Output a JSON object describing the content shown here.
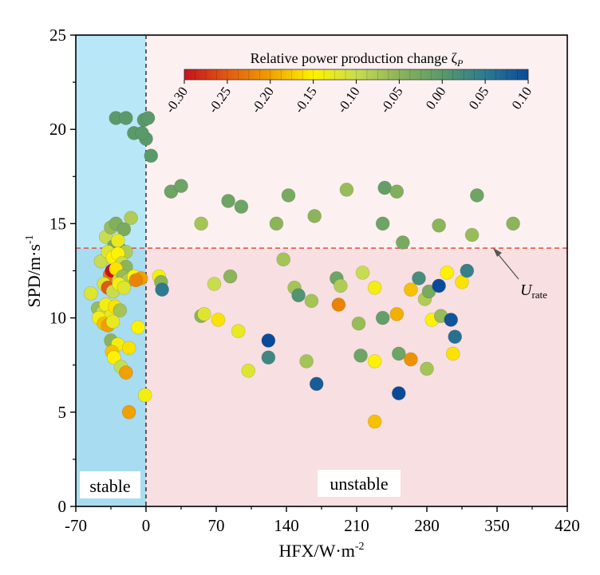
{
  "chart_data": {
    "type": "scatter",
    "xlabel": "HFX/W·m",
    "xlabel_sup": "-2",
    "ylabel": "SPD/m·s",
    "ylabel_sup": "-1",
    "xlim": [
      -70,
      420
    ],
    "ylim": [
      0,
      25
    ],
    "x_ticks": [
      "-70",
      "0",
      "70",
      "140",
      "210",
      "280",
      "350",
      "420"
    ],
    "x_tick_values": [
      -70,
      0,
      70,
      140,
      210,
      280,
      350,
      420
    ],
    "y_ticks": [
      "0",
      "5",
      "10",
      "15",
      "20",
      "25"
    ],
    "y_tick_values": [
      0,
      5,
      10,
      15,
      20,
      25
    ],
    "regions": {
      "stable_label": "stable",
      "unstable_label": "unstable",
      "divider_x": 0,
      "colors": {
        "stable_low": "#a8dcf0",
        "stable_high": "#b8e8f8",
        "unstable_low": "#f8dfe2",
        "unstable_high": "#fdf0f1"
      }
    },
    "rated_speed": {
      "value": 13.7,
      "label_main": "U",
      "label_sub": "rate",
      "line_color": "#e05040"
    },
    "colorbar": {
      "title": "Relative power production change ζ",
      "title_sub": "P",
      "min": -0.3,
      "max": 0.1,
      "tick_labels": [
        "-0.30",
        "-0.25",
        "-0.20",
        "-0.15",
        "-0.10",
        "-0.05",
        "0.00",
        "0.05",
        "0.10"
      ],
      "tick_values": [
        -0.3,
        -0.25,
        -0.2,
        -0.15,
        -0.1,
        -0.05,
        0.0,
        0.05,
        0.1
      ],
      "stops": [
        "#c8101e",
        "#e05a12",
        "#f0a000",
        "#fff200",
        "#c8dc50",
        "#8cb45a",
        "#5a9a6a",
        "#2e7a90",
        "#0a4a9a"
      ]
    },
    "points": [
      [
        -30,
        20.6,
        0.0
      ],
      [
        -20,
        20.6,
        0.0
      ],
      [
        -12,
        19.8,
        0.0
      ],
      [
        -2,
        20.5,
        0.0
      ],
      [
        2,
        20.6,
        0.0
      ],
      [
        0,
        19.5,
        0.0
      ],
      [
        -4,
        19.8,
        0.0
      ],
      [
        5,
        18.6,
        0.0
      ],
      [
        -40,
        14.3,
        -0.1
      ],
      [
        -35,
        14.8,
        -0.06
      ],
      [
        -30,
        15.0,
        -0.04
      ],
      [
        -22,
        14.7,
        -0.03
      ],
      [
        -15,
        15.3,
        -0.08
      ],
      [
        -25,
        13.6,
        -0.02
      ],
      [
        -32,
        13.8,
        -0.03
      ],
      [
        -28,
        14.1,
        -0.13
      ],
      [
        -20,
        13.5,
        -0.08
      ],
      [
        -45,
        13.0,
        -0.1
      ],
      [
        -38,
        13.5,
        -0.12
      ],
      [
        -33,
        13.2,
        -0.15
      ],
      [
        -28,
        13.4,
        -0.15
      ],
      [
        -24,
        12.9,
        -0.1
      ],
      [
        -20,
        12.7,
        -0.05
      ],
      [
        -36,
        12.3,
        -0.23
      ],
      [
        -34,
        12.5,
        -0.3
      ],
      [
        -30,
        12.6,
        -0.16
      ],
      [
        -27,
        12.0,
        -0.12
      ],
      [
        -23,
        12.2,
        -0.06
      ],
      [
        -18,
        12.0,
        -0.08
      ],
      [
        -12,
        12.2,
        -0.15
      ],
      [
        -5,
        12.1,
        -0.2
      ],
      [
        -10,
        12.0,
        -0.22
      ],
      [
        -42,
        11.8,
        -0.12
      ],
      [
        -38,
        11.6,
        -0.25
      ],
      [
        -33,
        11.4,
        -0.1
      ],
      [
        -27,
        11.8,
        -0.14
      ],
      [
        -22,
        11.6,
        -0.12
      ],
      [
        -55,
        11.3,
        -0.12
      ],
      [
        -48,
        10.5,
        -0.06
      ],
      [
        -43,
        10.3,
        -0.1
      ],
      [
        -40,
        10.7,
        -0.14
      ],
      [
        -35,
        10.1,
        -0.13
      ],
      [
        -31,
        10.6,
        -0.16
      ],
      [
        -26,
        10.4,
        -0.07
      ],
      [
        -47,
        10.0,
        -0.14
      ],
      [
        -42,
        9.7,
        -0.18
      ],
      [
        -38,
        9.6,
        -0.2
      ],
      [
        -33,
        9.8,
        -0.13
      ],
      [
        -8,
        9.5,
        -0.15
      ],
      [
        -35,
        8.8,
        -0.05
      ],
      [
        -28,
        8.6,
        -0.14
      ],
      [
        -34,
        8.2,
        -0.18
      ],
      [
        -32,
        7.9,
        -0.15
      ],
      [
        -25,
        7.4,
        -0.1
      ],
      [
        -20,
        7.1,
        -0.2
      ],
      [
        -17,
        8.4,
        -0.16
      ],
      [
        -17,
        5.0,
        -0.2
      ],
      [
        -1,
        5.9,
        -0.14
      ],
      [
        13,
        12.2,
        -0.14
      ],
      [
        15,
        11.9,
        -0.05
      ],
      [
        16,
        11.5,
        0.05
      ],
      [
        25,
        16.7,
        -0.02
      ],
      [
        35,
        17.0,
        -0.02
      ],
      [
        55,
        15.0,
        -0.07
      ],
      [
        82,
        16.2,
        -0.02
      ],
      [
        95,
        15.9,
        -0.02
      ],
      [
        130,
        15.0,
        -0.05
      ],
      [
        142,
        16.5,
        -0.03
      ],
      [
        168,
        15.4,
        -0.05
      ],
      [
        200,
        16.8,
        -0.06
      ],
      [
        236,
        15.0,
        -0.02
      ],
      [
        238,
        16.9,
        -0.01
      ],
      [
        250,
        16.7,
        -0.04
      ],
      [
        256,
        14.0,
        -0.03
      ],
      [
        292,
        14.9,
        -0.05
      ],
      [
        325,
        14.4,
        -0.06
      ],
      [
        330,
        16.5,
        -0.02
      ],
      [
        366,
        15.0,
        -0.05
      ],
      [
        55,
        10.1,
        -0.05
      ],
      [
        58,
        10.2,
        -0.12
      ],
      [
        68,
        11.8,
        -0.1
      ],
      [
        72,
        9.9,
        -0.16
      ],
      [
        84,
        12.2,
        -0.05
      ],
      [
        92,
        9.3,
        -0.13
      ],
      [
        102,
        7.2,
        -0.12
      ],
      [
        122,
        8.8,
        0.1
      ],
      [
        122,
        7.9,
        0.03
      ],
      [
        137,
        13.1,
        -0.07
      ],
      [
        148,
        11.6,
        -0.07
      ],
      [
        152,
        11.2,
        0.01
      ],
      [
        160,
        7.7,
        -0.07
      ],
      [
        165,
        10.9,
        -0.07
      ],
      [
        170,
        6.5,
        0.08
      ],
      [
        190,
        12.1,
        -0.02
      ],
      [
        192,
        10.7,
        -0.22
      ],
      [
        194,
        11.7,
        -0.08
      ],
      [
        212,
        9.7,
        -0.06
      ],
      [
        214,
        8.0,
        -0.02
      ],
      [
        216,
        12.4,
        -0.1
      ],
      [
        228,
        11.6,
        -0.14
      ],
      [
        228,
        7.7,
        -0.15
      ],
      [
        228,
        4.5,
        -0.18
      ],
      [
        236,
        10.0,
        -0.01
      ],
      [
        250,
        10.2,
        -0.19
      ],
      [
        252,
        8.1,
        -0.02
      ],
      [
        252,
        6.0,
        0.1
      ],
      [
        264,
        11.5,
        -0.18
      ],
      [
        264,
        7.8,
        -0.21
      ],
      [
        272,
        12.1,
        0.02
      ],
      [
        278,
        11.0,
        -0.08
      ],
      [
        280,
        7.3,
        -0.07
      ],
      [
        282,
        11.4,
        -0.03
      ],
      [
        285,
        9.9,
        -0.15
      ],
      [
        292,
        11.7,
        0.1
      ],
      [
        294,
        10.1,
        -0.06
      ],
      [
        300,
        12.4,
        -0.15
      ],
      [
        304,
        9.9,
        0.09
      ],
      [
        306,
        8.1,
        -0.16
      ],
      [
        308,
        9.0,
        0.06
      ],
      [
        315,
        11.9,
        -0.16
      ],
      [
        320,
        12.5,
        0.04
      ]
    ]
  }
}
